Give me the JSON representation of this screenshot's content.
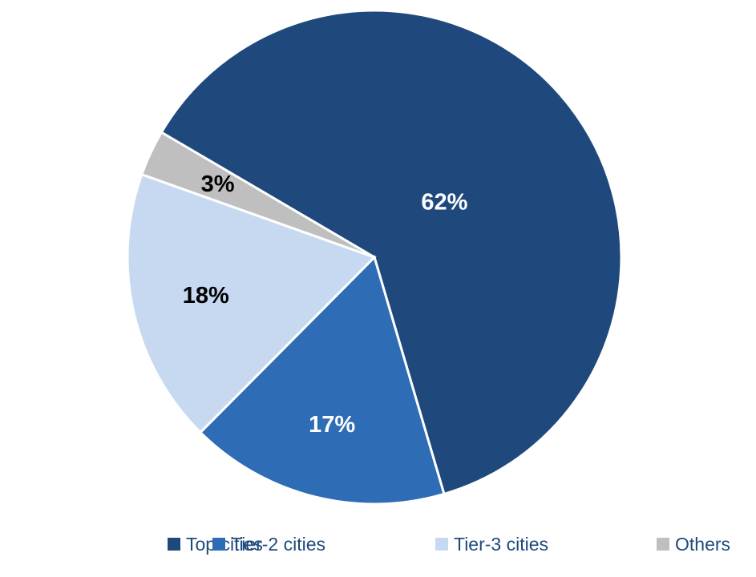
{
  "chart_data": {
    "type": "pie",
    "categories": [
      "Top cities",
      "Tier-2 cities",
      "Tier-3 cities",
      "Others"
    ],
    "values": [
      62,
      17,
      18,
      3
    ],
    "value_labels": [
      "62%",
      "17%",
      "18%",
      "3%"
    ],
    "colors": [
      "#1f497d",
      "#2e6db5",
      "#c6d9f1",
      "#bfbfbf"
    ],
    "legend": "bottom"
  }
}
